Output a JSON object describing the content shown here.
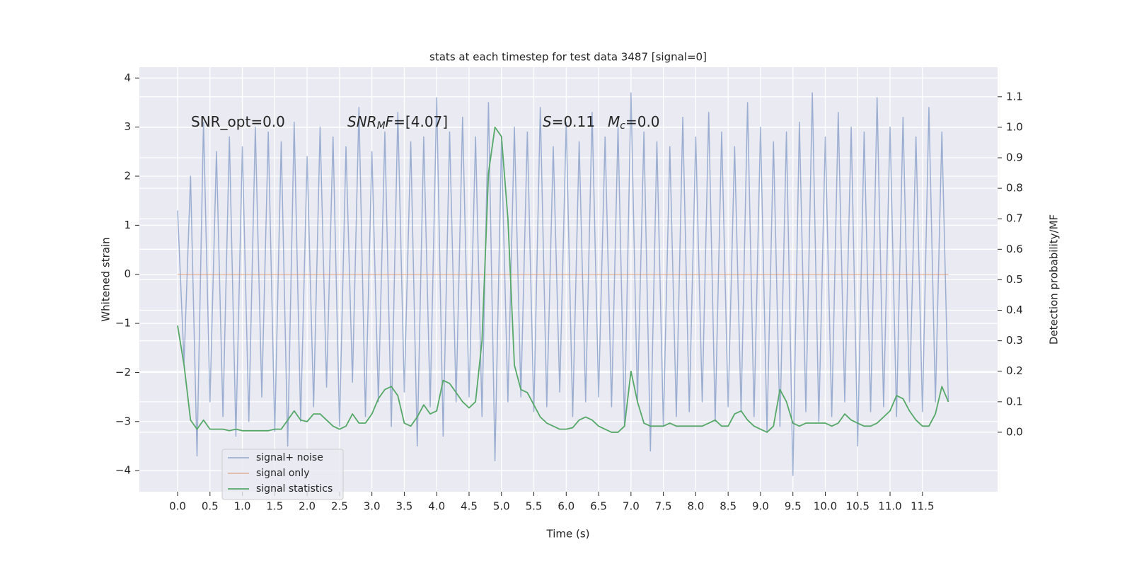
{
  "chart_data": {
    "type": "line",
    "title": "stats at each timestep for test data 3487 [signal=0]",
    "xlabel": "Time (s)",
    "ylabel": "Whitened strain",
    "y2label": "Detection probability/MF",
    "grid": true,
    "legend": "lower left",
    "xlim": [
      -0.59,
      12.66
    ],
    "ylim": [
      -4.43,
      4.22
    ],
    "y2lim": [
      -0.195,
      1.197
    ],
    "xticks": [
      {
        "value": 0,
        "label": "0.0"
      },
      0.5,
      {
        "value": 1,
        "label": "1.0"
      },
      1.5,
      {
        "value": 2,
        "label": "2.0"
      },
      2.5,
      {
        "value": 3,
        "label": "3.0"
      },
      3.5,
      {
        "value": 4,
        "label": "4.0"
      },
      4.5,
      {
        "value": 5,
        "label": "5.0"
      },
      5.5,
      {
        "value": 6,
        "label": "6.0"
      },
      6.5,
      {
        "value": 7,
        "label": "7.0"
      },
      7.5,
      {
        "value": 8,
        "label": "8.0"
      },
      8.5,
      {
        "value": 9,
        "label": "9.0"
      },
      9.5,
      {
        "value": 10,
        "label": "10.0"
      },
      10.5,
      {
        "value": 11,
        "label": "11.0"
      },
      11.5
    ],
    "yticks": [
      {
        "value": -4,
        "label": "−4"
      },
      {
        "value": -3,
        "label": "−3"
      },
      {
        "value": -2,
        "label": "−2"
      },
      {
        "value": -1,
        "label": "−1"
      },
      0,
      1,
      2,
      3,
      4
    ],
    "y2ticks": [
      {
        "value": 0,
        "label": "0.0"
      },
      0.1,
      0.2,
      0.3,
      0.4,
      0.5,
      0.6,
      0.7,
      0.8,
      0.9,
      {
        "value": 1,
        "label": "1.0"
      },
      1.1
    ],
    "annotations": [
      [
        {
          "text": "SNR_opt=0.0"
        }
      ],
      [
        {
          "text": "SNR",
          "italic": true
        },
        {
          "text": "M",
          "italic": true,
          "sub": true
        },
        {
          "text": "F",
          "italic": true
        },
        {
          "text": "=[4.07]"
        }
      ],
      [
        {
          "text": "S",
          "italic": true
        },
        {
          "text": "=0.11"
        }
      ],
      [
        {
          "text": "M",
          "italic": true
        },
        {
          "text": "c",
          "italic": true,
          "sub": true
        },
        {
          "text": "=0.0"
        }
      ]
    ],
    "x": [
      0,
      0.1,
      0.2,
      0.3,
      0.4,
      0.5,
      0.6,
      0.7,
      0.8,
      0.9,
      1,
      1.1,
      1.2,
      1.3,
      1.4,
      1.5,
      1.6,
      1.7,
      1.8,
      1.9,
      2,
      2.1,
      2.2,
      2.3,
      2.4,
      2.5,
      2.6,
      2.7,
      2.8,
      2.9,
      3,
      3.1,
      3.2,
      3.3,
      3.4,
      3.5,
      3.6,
      3.7,
      3.8,
      3.9,
      4,
      4.1,
      4.2,
      4.3,
      4.4,
      4.5,
      4.6,
      4.7,
      4.8,
      4.9,
      5,
      5.1,
      5.2,
      5.3,
      5.4,
      5.5,
      5.6,
      5.7,
      5.8,
      5.9,
      6,
      6.1,
      6.2,
      6.3,
      6.4,
      6.5,
      6.6,
      6.7,
      6.8,
      6.9,
      7,
      7.1,
      7.2,
      7.3,
      7.4,
      7.5,
      7.6,
      7.7,
      7.8,
      7.9,
      8,
      8.1,
      8.2,
      8.3,
      8.4,
      8.5,
      8.6,
      8.7,
      8.8,
      8.9,
      9,
      9.1,
      9.2,
      9.3,
      9.4,
      9.5,
      9.6,
      9.7,
      9.8,
      9.9,
      10,
      10.1,
      10.2,
      10.3,
      10.4,
      10.5,
      10.6,
      10.7,
      10.8,
      10.9,
      11,
      11.1,
      11.2,
      11.3,
      11.4,
      11.5,
      11.6,
      11.7,
      11.8,
      11.9
    ],
    "series": [
      {
        "name": "signal+ noise",
        "color": "#4c72b0",
        "values": [
          1.3,
          -1.8,
          2.0,
          -3.7,
          3.1,
          -2.6,
          2.5,
          -2.9,
          2.8,
          -3.3,
          2.6,
          -3.0,
          3.0,
          -2.5,
          2.9,
          -3.2,
          2.7,
          -3.5,
          3.1,
          -3.0,
          2.4,
          -2.7,
          3.0,
          -2.3,
          2.8,
          -3.1,
          2.6,
          -2.2,
          3.4,
          -2.9,
          2.5,
          -2.6,
          2.9,
          -3.1,
          3.3,
          -2.4,
          2.7,
          -3.5,
          2.8,
          -2.7,
          3.6,
          -3.3,
          2.9,
          -2.6,
          3.2,
          -2.5,
          2.8,
          -2.9,
          3.5,
          -3.8,
          2.7,
          -2.6,
          3.0,
          -2.5,
          2.9,
          -2.8,
          3.4,
          -2.7,
          2.6,
          -2.4,
          3.1,
          -2.9,
          2.7,
          -2.6,
          3.3,
          -2.5,
          2.8,
          -2.7,
          3.0,
          -3.1,
          3.7,
          -2.6,
          2.9,
          -3.6,
          2.7,
          -3.1,
          2.6,
          -2.9,
          3.2,
          -2.8,
          2.8,
          -2.6,
          3.3,
          -3.0,
          2.9,
          -2.7,
          2.6,
          -2.8,
          3.5,
          -2.9,
          3.0,
          -3.2,
          2.7,
          -3.1,
          2.9,
          -4.1,
          3.1,
          -2.8,
          3.7,
          -3.0,
          2.8,
          -2.9,
          3.3,
          -2.6,
          3.0,
          -3.5,
          2.9,
          -2.8,
          3.6,
          -2.7,
          3.0,
          -2.9,
          3.2,
          -2.6,
          2.8,
          -2.8,
          3.4,
          -2.6,
          2.9,
          -2.6
        ]
      },
      {
        "name": "signal only",
        "color": "#dd8452",
        "values": [
          0,
          0,
          0,
          0,
          0,
          0,
          0,
          0,
          0,
          0,
          0,
          0,
          0,
          0,
          0,
          0,
          0,
          0,
          0,
          0,
          0,
          0,
          0,
          0,
          0,
          0,
          0,
          0,
          0,
          0,
          0,
          0,
          0,
          0,
          0,
          0,
          0,
          0,
          0,
          0,
          0,
          0,
          0,
          0,
          0,
          0,
          0,
          0,
          0,
          0,
          0,
          0,
          0,
          0,
          0,
          0,
          0,
          0,
          0,
          0,
          0,
          0,
          0,
          0,
          0,
          0,
          0,
          0,
          0,
          0,
          0,
          0,
          0,
          0,
          0,
          0,
          0,
          0,
          0,
          0,
          0,
          0,
          0,
          0,
          0,
          0,
          0,
          0,
          0,
          0,
          0,
          0,
          0,
          0,
          0,
          0,
          0,
          0,
          0,
          0,
          0,
          0,
          0,
          0,
          0,
          0,
          0,
          0,
          0,
          0,
          0,
          0,
          0,
          0,
          0,
          0,
          0,
          0,
          0,
          0
        ]
      },
      {
        "name": "signal statistics",
        "color": "#55a868",
        "axis": "y2",
        "values": [
          0.35,
          0.22,
          0.04,
          0.01,
          0.04,
          0.01,
          0.01,
          0.01,
          0.005,
          0.01,
          0.005,
          0.005,
          0.005,
          0.005,
          0.005,
          0.01,
          0.01,
          0.04,
          0.07,
          0.04,
          0.035,
          0.06,
          0.06,
          0.04,
          0.02,
          0.01,
          0.02,
          0.06,
          0.03,
          0.03,
          0.06,
          0.11,
          0.14,
          0.15,
          0.12,
          0.03,
          0.02,
          0.05,
          0.09,
          0.06,
          0.07,
          0.17,
          0.16,
          0.13,
          0.1,
          0.08,
          0.1,
          0.3,
          0.85,
          1.0,
          0.97,
          0.7,
          0.22,
          0.14,
          0.13,
          0.09,
          0.05,
          0.03,
          0.02,
          0.01,
          0.01,
          0.015,
          0.04,
          0.05,
          0.04,
          0.02,
          0.01,
          0,
          0,
          0.02,
          0.2,
          0.1,
          0.03,
          0.02,
          0.02,
          0.02,
          0.03,
          0.02,
          0.02,
          0.02,
          0.02,
          0.02,
          0.03,
          0.04,
          0.02,
          0.02,
          0.06,
          0.07,
          0.04,
          0.02,
          0.01,
          0,
          0.02,
          0.14,
          0.1,
          0.03,
          0.02,
          0.03,
          0.03,
          0.03,
          0.03,
          0.02,
          0.03,
          0.06,
          0.04,
          0.03,
          0.02,
          0.02,
          0.03,
          0.05,
          0.07,
          0.12,
          0.11,
          0.07,
          0.04,
          0.02,
          0.02,
          0.06,
          0.15,
          0.1
        ]
      }
    ]
  }
}
